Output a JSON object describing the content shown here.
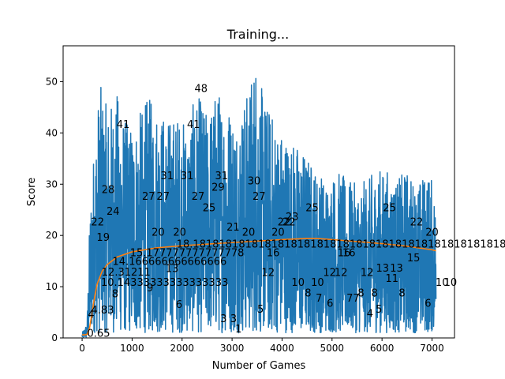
{
  "chart_data": {
    "type": "line",
    "title": "Training...",
    "xlabel": "Number of Games",
    "ylabel": "Score",
    "xlim": [
      -380,
      7450
    ],
    "ylim": [
      0,
      57
    ],
    "xticks": [
      0,
      1000,
      2000,
      3000,
      4000,
      5000,
      6000,
      7000
    ],
    "yticks": [
      0,
      10,
      20,
      30,
      40,
      50
    ],
    "grid": false,
    "legend": "none",
    "colors": {
      "scores": "#1f77b4",
      "mean": "#ff7f0e"
    },
    "series": [
      {
        "name": "",
        "role": "scores",
        "envelope": {
          "x": [
            0,
            100,
            150,
            200,
            250,
            350,
            500,
            700,
            900,
            1100,
            1300,
            1500,
            1700,
            1900,
            2100,
            2300,
            2500,
            2700,
            2900,
            3100,
            3300,
            3500,
            3550,
            3700,
            3900,
            4100,
            4300,
            4500,
            4700,
            4900,
            5100,
            5300,
            5500,
            5700,
            5900,
            6100,
            6300,
            6500,
            6700,
            6900,
            7000,
            7080
          ],
          "max": [
            1,
            3,
            23,
            34,
            38,
            50,
            45,
            48,
            42,
            43,
            47,
            46,
            43,
            44,
            42,
            48,
            44,
            49,
            47,
            44,
            48,
            57,
            50,
            46,
            42,
            40,
            38,
            36,
            33,
            31,
            33,
            31,
            30,
            31,
            33,
            33,
            31,
            33,
            30,
            33,
            31,
            28
          ],
          "min": [
            0,
            0,
            0,
            1,
            1,
            1,
            1,
            1,
            1,
            1,
            1,
            1,
            1,
            1,
            1,
            1,
            1,
            1,
            1,
            1,
            1,
            1,
            1,
            1,
            1,
            1,
            1,
            1,
            1,
            1,
            1,
            1,
            1,
            1,
            1,
            1,
            1,
            1,
            1,
            1,
            1,
            1
          ]
        }
      },
      {
        "name": "",
        "role": "mean",
        "x": [
          0,
          50,
          100,
          150,
          200,
          250,
          300,
          400,
          500,
          700,
          1000,
          1500,
          2000,
          2500,
          3000,
          3500,
          4000,
          4500,
          4700,
          5000,
          5500,
          6000,
          6500,
          7000,
          7080
        ],
        "y": [
          0.6,
          0.6,
          0.7,
          2.0,
          5.0,
          8.0,
          10.5,
          13.0,
          14.3,
          15.8,
          16.8,
          17.6,
          18.0,
          18.3,
          18.6,
          18.9,
          19.2,
          19.4,
          19.4,
          19.2,
          18.8,
          18.4,
          17.9,
          17.2,
          17.0
        ]
      }
    ],
    "annotations": [
      {
        "text": "0.65",
        "x": 330,
        "y": 0.8
      },
      {
        "text": "4",
        "x": 180,
        "y": 4.5
      },
      {
        "text": "4.83",
        "x": 410,
        "y": 5.3
      },
      {
        "text": "8",
        "x": 660,
        "y": 8.5
      },
      {
        "text": "10.14333333333333333",
        "x": 1650,
        "y": 10.7
      },
      {
        "text": "12.31211",
        "x": 880,
        "y": 12.7
      },
      {
        "text": "14.166666666666666",
        "x": 1750,
        "y": 14.8
      },
      {
        "text": "15.177777777777778",
        "x": 2100,
        "y": 16.5
      },
      {
        "text": "9",
        "x": 1360,
        "y": 9.6
      },
      {
        "text": "13",
        "x": 1800,
        "y": 13.4
      },
      {
        "text": "6",
        "x": 1940,
        "y": 6.4
      },
      {
        "text": "19",
        "x": 420,
        "y": 19.5
      },
      {
        "text": "22",
        "x": 310,
        "y": 22.5
      },
      {
        "text": "24",
        "x": 620,
        "y": 24.6
      },
      {
        "text": "28",
        "x": 520,
        "y": 28.8
      },
      {
        "text": "41",
        "x": 820,
        "y": 41.5
      },
      {
        "text": "27",
        "x": 1330,
        "y": 27.5
      },
      {
        "text": "27",
        "x": 1620,
        "y": 27.5
      },
      {
        "text": "31",
        "x": 1700,
        "y": 31.5
      },
      {
        "text": "20",
        "x": 1520,
        "y": 20.5
      },
      {
        "text": "20",
        "x": 1950,
        "y": 20.5
      },
      {
        "text": "31",
        "x": 2100,
        "y": 31.5
      },
      {
        "text": "41",
        "x": 2230,
        "y": 41.5
      },
      {
        "text": "48",
        "x": 2380,
        "y": 48.5
      },
      {
        "text": "27",
        "x": 2320,
        "y": 27.5
      },
      {
        "text": "25",
        "x": 2540,
        "y": 25.3
      },
      {
        "text": "29",
        "x": 2720,
        "y": 29.3
      },
      {
        "text": "31",
        "x": 2790,
        "y": 31.5
      },
      {
        "text": "3",
        "x": 2830,
        "y": 3.6
      },
      {
        "text": "3",
        "x": 3030,
        "y": 3.6
      },
      {
        "text": "1",
        "x": 3130,
        "y": 1.6
      },
      {
        "text": "21",
        "x": 3020,
        "y": 21.5
      },
      {
        "text": "20",
        "x": 3330,
        "y": 20.5
      },
      {
        "text": "30",
        "x": 3440,
        "y": 30.5
      },
      {
        "text": "27",
        "x": 3540,
        "y": 27.5
      },
      {
        "text": "5",
        "x": 3570,
        "y": 5.5
      },
      {
        "text": "16",
        "x": 3820,
        "y": 16.5
      },
      {
        "text": "12",
        "x": 3720,
        "y": 12.6
      },
      {
        "text": "20",
        "x": 3920,
        "y": 20.5
      },
      {
        "text": "22",
        "x": 4040,
        "y": 22.5
      },
      {
        "text": "22",
        "x": 4140,
        "y": 22.5
      },
      {
        "text": "23",
        "x": 4200,
        "y": 23.5
      },
      {
        "text": "25",
        "x": 4600,
        "y": 25.3
      },
      {
        "text": "10",
        "x": 4320,
        "y": 10.7
      },
      {
        "text": "8",
        "x": 4520,
        "y": 8.6
      },
      {
        "text": "10",
        "x": 4710,
        "y": 10.7
      },
      {
        "text": "7",
        "x": 4740,
        "y": 7.6
      },
      {
        "text": "12",
        "x": 4950,
        "y": 12.6
      },
      {
        "text": "6",
        "x": 4960,
        "y": 6.6
      },
      {
        "text": "12",
        "x": 5180,
        "y": 12.6
      },
      {
        "text": "16",
        "x": 5240,
        "y": 16.5
      },
      {
        "text": "16",
        "x": 5340,
        "y": 16.5
      },
      {
        "text": "77",
        "x": 5420,
        "y": 7.6
      },
      {
        "text": "8",
        "x": 5580,
        "y": 8.6
      },
      {
        "text": "12",
        "x": 5700,
        "y": 12.6
      },
      {
        "text": "8",
        "x": 5850,
        "y": 8.6
      },
      {
        "text": "4",
        "x": 5760,
        "y": 4.6
      },
      {
        "text": "5",
        "x": 5940,
        "y": 5.5
      },
      {
        "text": "13",
        "x": 6010,
        "y": 13.5
      },
      {
        "text": "11",
        "x": 6200,
        "y": 11.5
      },
      {
        "text": "13",
        "x": 6290,
        "y": 13.5
      },
      {
        "text": "25",
        "x": 6150,
        "y": 25.3
      },
      {
        "text": "8",
        "x": 6400,
        "y": 8.6
      },
      {
        "text": "15",
        "x": 6630,
        "y": 15.5
      },
      {
        "text": "22",
        "x": 6690,
        "y": 22.5
      },
      {
        "text": "6",
        "x": 6920,
        "y": 6.6
      },
      {
        "text": "20",
        "x": 7000,
        "y": 20.5
      },
      {
        "text": "10",
        "x": 7200,
        "y": 10.7
      },
      {
        "text": "10",
        "x": 7370,
        "y": 10.7
      },
      {
        "text": "18.18181818181818181818181818181818181818181818181818181818181818",
        "x": 6100,
        "y": 18.2
      }
    ]
  }
}
